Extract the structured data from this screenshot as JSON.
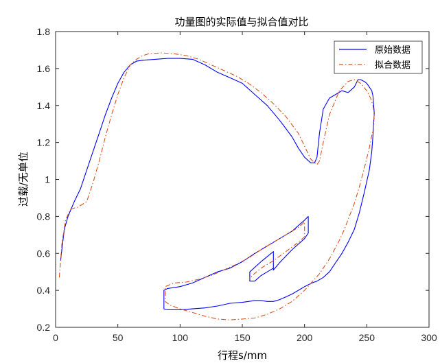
{
  "chart_data": {
    "type": "line",
    "title": "功量图的实际值与拟合值对比",
    "xlabel": "行程s/mm",
    "ylabel": "过载/无单位",
    "xlim": [
      0,
      300
    ],
    "ylim": [
      0.2,
      1.8
    ],
    "x_ticks": [
      0,
      50,
      100,
      150,
      200,
      250,
      300
    ],
    "y_ticks": [
      0.2,
      0.4,
      0.6,
      0.8,
      1.0,
      1.2,
      1.4,
      1.6,
      1.8
    ],
    "x_tick_labels": [
      "0",
      "50",
      "100",
      "150",
      "200",
      "250",
      "300"
    ],
    "y_tick_labels": [
      "0.2",
      "0.4",
      "0.6",
      "0.8",
      "1",
      "1.2",
      "1.4",
      "1.6",
      "1.8"
    ],
    "grid": false,
    "legend_position": "top-right",
    "series": [
      {
        "name": "原始数据",
        "color": "#0000ff",
        "style": "solid",
        "x": [
          4,
          5,
          7,
          10,
          15,
          20,
          25,
          30,
          35,
          40,
          45,
          50,
          55,
          60,
          65,
          70,
          80,
          90,
          100,
          110,
          120,
          130,
          140,
          150,
          160,
          170,
          180,
          190,
          195,
          200,
          205,
          208,
          210,
          212,
          215,
          220,
          225,
          230,
          235,
          240,
          243,
          245,
          248,
          250,
          252,
          254,
          255,
          256,
          255,
          254,
          252,
          248,
          244,
          240,
          235,
          230,
          225,
          220,
          215,
          210,
          206,
          203,
          200,
          195,
          190,
          185,
          180,
          175,
          170,
          165,
          160,
          155,
          150,
          140,
          130,
          120,
          110,
          100,
          90,
          87,
          87,
          90,
          100,
          110,
          120,
          130,
          140,
          150,
          160,
          170,
          180,
          190,
          195,
          200,
          203,
          203,
          200,
          190,
          180,
          175,
          175,
          165,
          156,
          156,
          160,
          165,
          170,
          175
        ],
        "y": [
          0.56,
          0.62,
          0.73,
          0.8,
          0.88,
          0.95,
          1.05,
          1.15,
          1.25,
          1.35,
          1.44,
          1.52,
          1.58,
          1.62,
          1.64,
          1.645,
          1.65,
          1.655,
          1.655,
          1.65,
          1.62,
          1.58,
          1.55,
          1.52,
          1.46,
          1.4,
          1.32,
          1.23,
          1.17,
          1.12,
          1.09,
          1.09,
          1.12,
          1.25,
          1.38,
          1.44,
          1.46,
          1.48,
          1.47,
          1.5,
          1.54,
          1.54,
          1.53,
          1.52,
          1.5,
          1.48,
          1.45,
          1.36,
          1.24,
          1.15,
          1.05,
          0.93,
          0.82,
          0.73,
          0.66,
          0.6,
          0.55,
          0.5,
          0.47,
          0.45,
          0.44,
          0.43,
          0.42,
          0.4,
          0.38,
          0.365,
          0.35,
          0.34,
          0.34,
          0.345,
          0.345,
          0.34,
          0.335,
          0.33,
          0.315,
          0.305,
          0.3,
          0.295,
          0.295,
          0.3,
          0.4,
          0.41,
          0.42,
          0.44,
          0.47,
          0.5,
          0.52,
          0.555,
          0.6,
          0.64,
          0.68,
          0.72,
          0.75,
          0.78,
          0.8,
          0.71,
          0.68,
          0.62,
          0.55,
          0.51,
          0.61,
          0.555,
          0.5,
          0.45,
          0.45,
          0.48,
          0.5,
          0.52
        ]
      },
      {
        "name": "拟合数据",
        "color": "#d95319",
        "style": "dashdot",
        "x": [
          3,
          5,
          8,
          12,
          18,
          25,
          30,
          35,
          40,
          45,
          50,
          55,
          60,
          65,
          70,
          75,
          85,
          95,
          105,
          115,
          125,
          135,
          145,
          155,
          165,
          175,
          185,
          195,
          200,
          205,
          210,
          212,
          215,
          220,
          228,
          235,
          240,
          245,
          250,
          253,
          255,
          256,
          255,
          252,
          248,
          244,
          240,
          236,
          232,
          228,
          224,
          220,
          216,
          212,
          208,
          204,
          200,
          195,
          190,
          180,
          170,
          160,
          150,
          140,
          130,
          120,
          110,
          100,
          92,
          88,
          88,
          95,
          105,
          115,
          125,
          135,
          145,
          155,
          165,
          175,
          185,
          195,
          200,
          200,
          195,
          185,
          175,
          165,
          158,
          156
        ],
        "y": [
          0.47,
          0.65,
          0.78,
          0.84,
          0.85,
          0.88,
          0.98,
          1.1,
          1.23,
          1.35,
          1.46,
          1.55,
          1.62,
          1.65,
          1.67,
          1.68,
          1.685,
          1.68,
          1.67,
          1.65,
          1.62,
          1.59,
          1.56,
          1.52,
          1.47,
          1.41,
          1.34,
          1.25,
          1.18,
          1.11,
          1.08,
          1.1,
          1.2,
          1.35,
          1.48,
          1.53,
          1.54,
          1.52,
          1.48,
          1.44,
          1.4,
          1.35,
          1.27,
          1.17,
          1.06,
          0.96,
          0.87,
          0.8,
          0.73,
          0.67,
          0.62,
          0.57,
          0.53,
          0.49,
          0.46,
          0.43,
          0.4,
          0.37,
          0.34,
          0.3,
          0.27,
          0.25,
          0.245,
          0.24,
          0.245,
          0.26,
          0.28,
          0.3,
          0.32,
          0.34,
          0.42,
          0.44,
          0.445,
          0.46,
          0.48,
          0.51,
          0.54,
          0.575,
          0.62,
          0.66,
          0.7,
          0.74,
          0.77,
          0.69,
          0.66,
          0.61,
          0.56,
          0.52,
          0.48,
          0.46
        ]
      }
    ]
  }
}
